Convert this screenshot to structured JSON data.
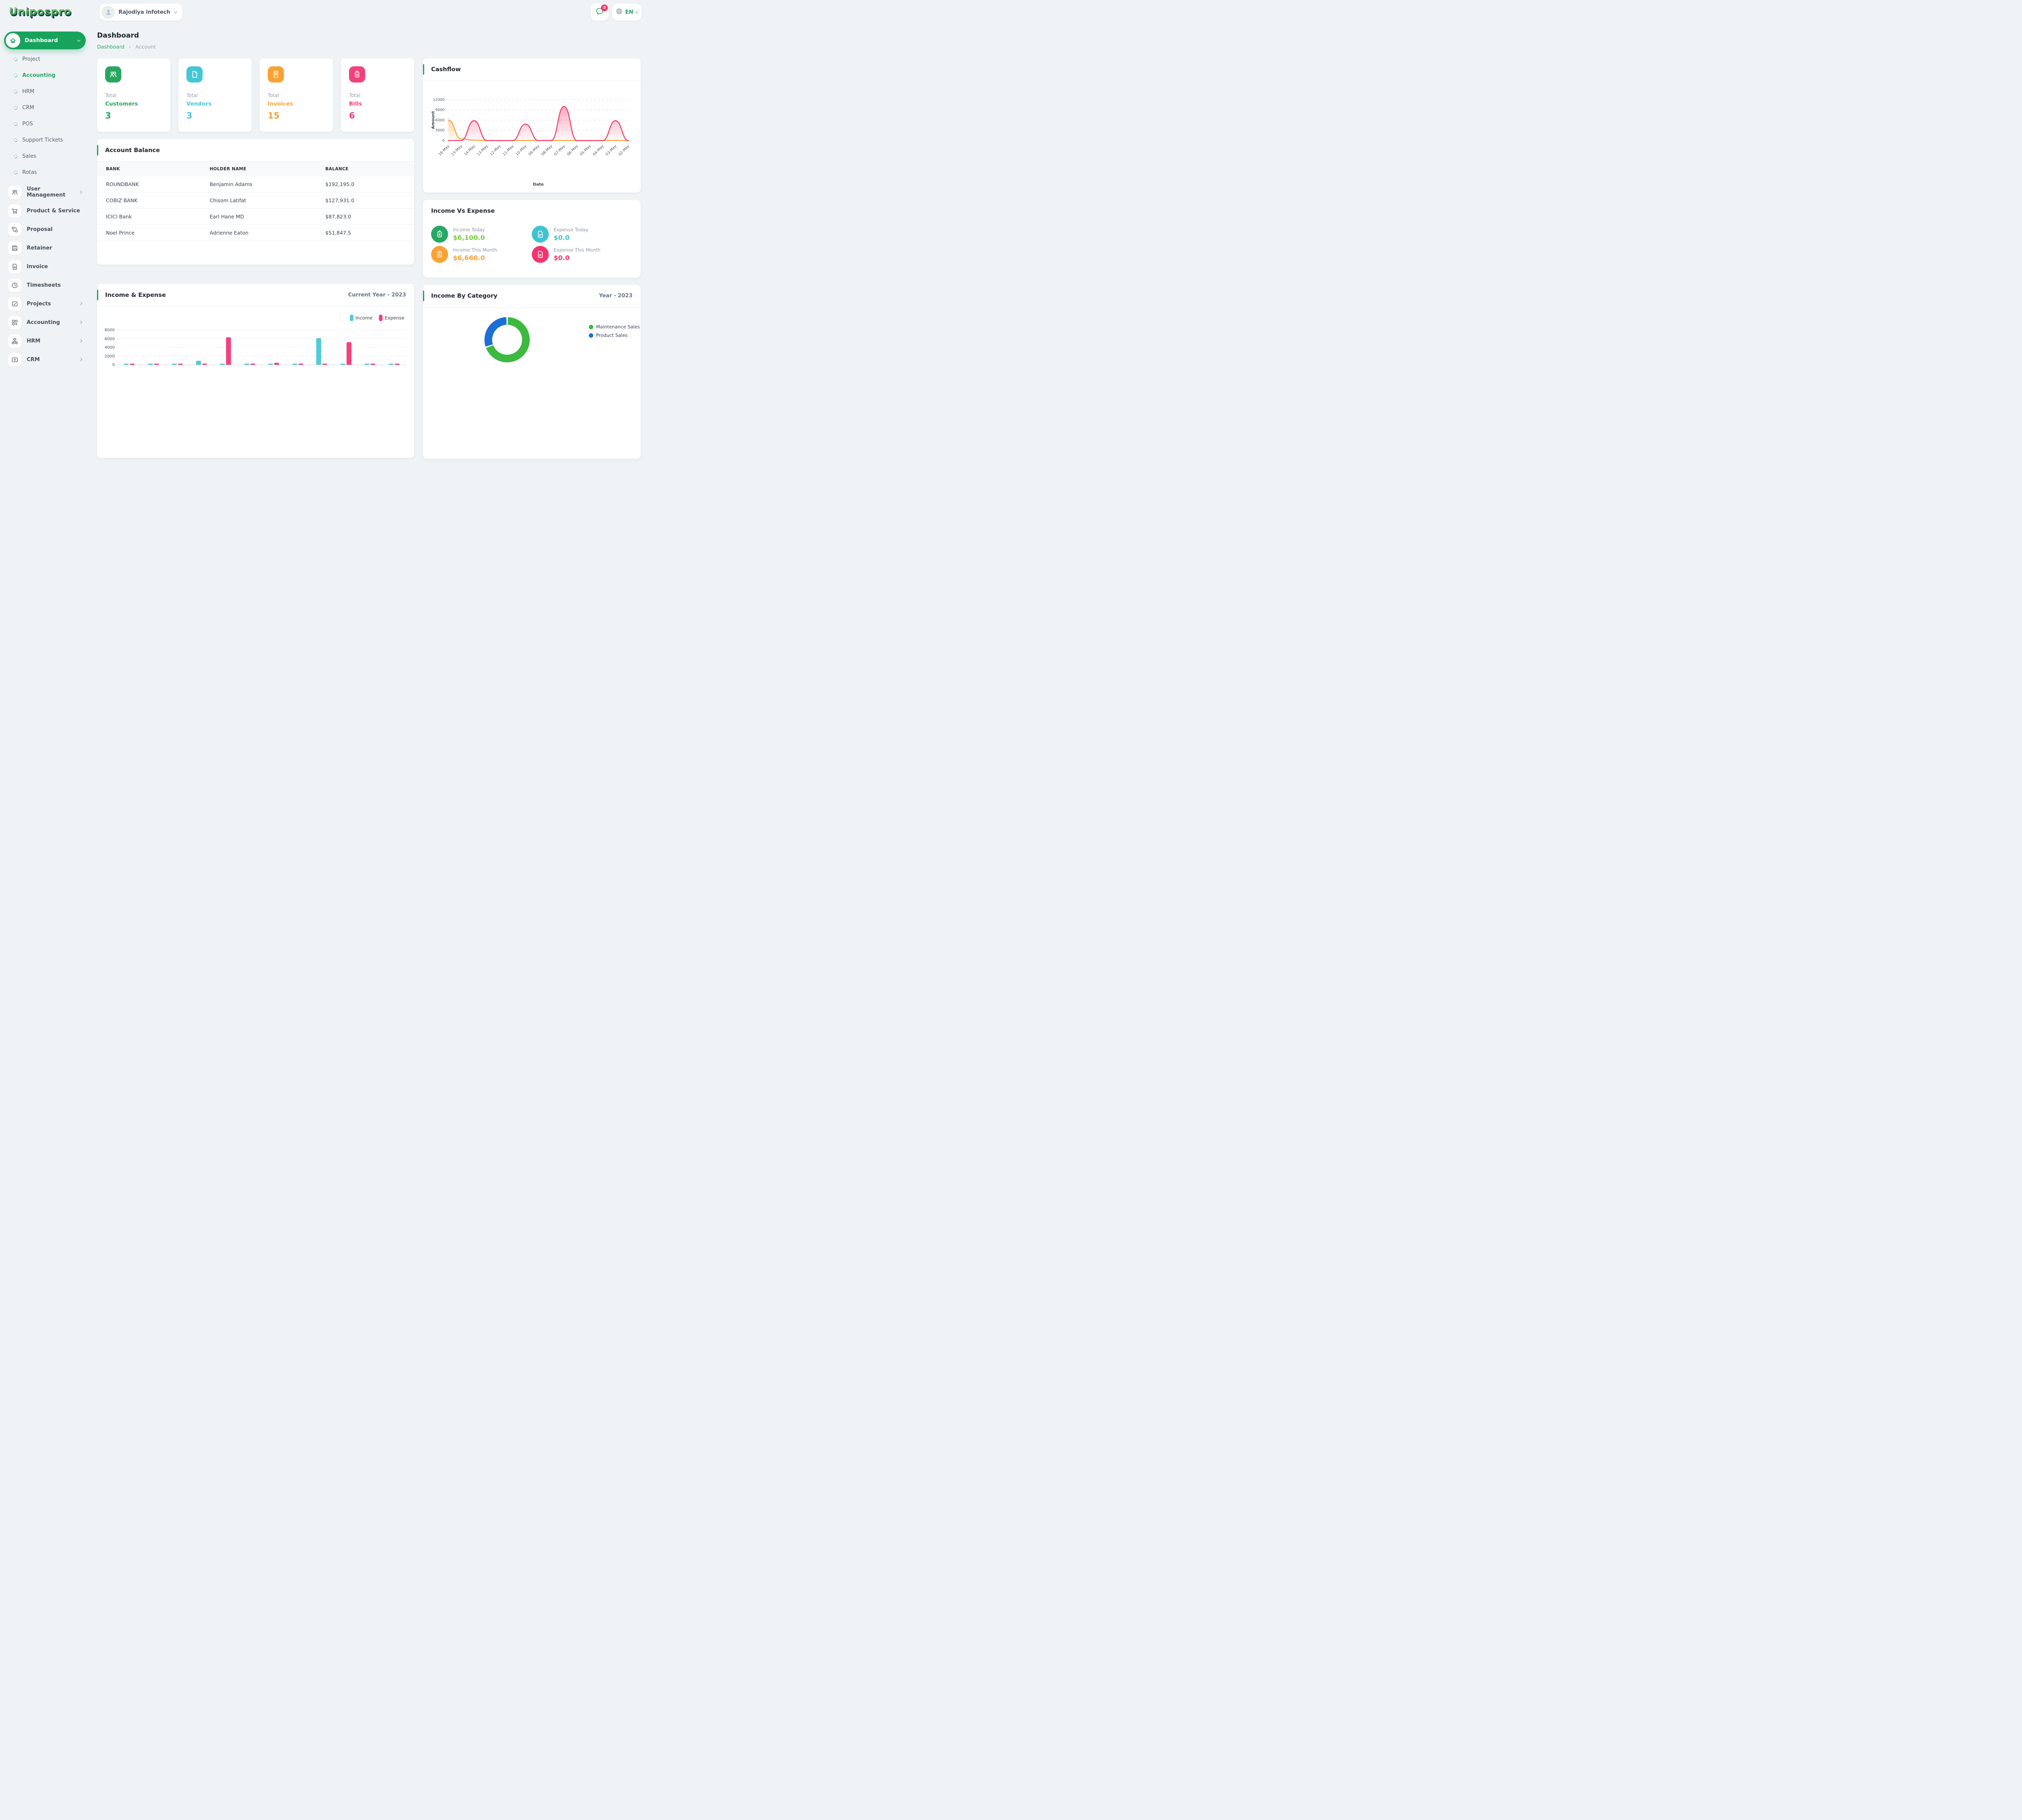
{
  "brand": {
    "name": "Unipospro"
  },
  "topbar": {
    "user": {
      "name": "Rajodiya infotech"
    },
    "chat_badge": "0",
    "language": {
      "code": "EN"
    }
  },
  "page": {
    "title": "Dashboard",
    "breadcrumb": {
      "root": "Dashboard",
      "separator": "›",
      "current": "Account"
    }
  },
  "sidebar": {
    "dashboard_label": "Dashboard",
    "sub_items": [
      {
        "label": "Project",
        "active": false
      },
      {
        "label": "Accounting",
        "active": true
      },
      {
        "label": "HRM",
        "active": false
      },
      {
        "label": "CRM",
        "active": false
      },
      {
        "label": "POS",
        "active": false
      },
      {
        "label": "Support Tickets",
        "active": false
      },
      {
        "label": "Sales",
        "active": false
      },
      {
        "label": "Rotas",
        "active": false
      }
    ],
    "main_items": [
      {
        "label": "User Management",
        "icon": "users",
        "chevron": true
      },
      {
        "label": "Product & Service",
        "icon": "cart",
        "chevron": false
      },
      {
        "label": "Proposal",
        "icon": "workflow",
        "chevron": false
      },
      {
        "label": "Retainer",
        "icon": "save",
        "chevron": false
      },
      {
        "label": "Invoice",
        "icon": "file-text",
        "chevron": false
      },
      {
        "label": "Timesheets",
        "icon": "clock",
        "chevron": false
      },
      {
        "label": "Projects",
        "icon": "check-square",
        "chevron": true
      },
      {
        "label": "Accounting",
        "icon": "grid-plus",
        "chevron": true
      },
      {
        "label": "HRM",
        "icon": "org",
        "chevron": true
      },
      {
        "label": "CRM",
        "icon": "card-plus",
        "chevron": true
      }
    ]
  },
  "stats": [
    {
      "prefix": "Total",
      "label": "Customers",
      "value": "3",
      "color": "#29a761",
      "icon": "users"
    },
    {
      "prefix": "Total",
      "label": "Vendors",
      "value": "3",
      "color": "#45c6d6",
      "icon": "page"
    },
    {
      "prefix": "Total",
      "label": "Invoices",
      "value": "15",
      "color": "#f9a234",
      "icon": "invoice"
    },
    {
      "prefix": "Total",
      "label": "Bills",
      "value": "6",
      "color": "#f2417b",
      "icon": "tag"
    }
  ],
  "account_balance": {
    "title": "Account Balance",
    "columns": [
      "BANK",
      "HOLDER NAME",
      "BALANCE"
    ],
    "rows": [
      [
        "ROUNDBANK",
        "Benjamin Adams",
        "$192,195.0"
      ],
      [
        "COBIZ BANK",
        "Chisom Latifat",
        "$127,931.0"
      ],
      [
        "ICICI Bank",
        "Earl Hane MD",
        "$87,823.0"
      ],
      [
        "Noel Prince",
        "Adrienne Eaton",
        "$51,847.5"
      ]
    ]
  },
  "income_vs_expense": {
    "title": "Income Vs Expense",
    "items": [
      {
        "label": "Income Today",
        "value": "$6,100.0",
        "icon": "tag",
        "icon_color": "#27a863",
        "value_color": "#7cc843"
      },
      {
        "label": "Expense Today",
        "value": "$0.0",
        "icon": "file",
        "icon_color": "#3fc3d3",
        "value_color": "#3fc3d3"
      },
      {
        "label": "Income This Month",
        "value": "$6,660.0",
        "icon": "tag",
        "icon_color": "#f9a337",
        "value_color": "#f9a337"
      },
      {
        "label": "Expense This Month",
        "value": "$0.0",
        "icon": "file",
        "icon_color": "#f2356e",
        "value_color": "#f2356e"
      }
    ]
  },
  "chart_data": [
    {
      "id": "cashflow",
      "type": "area",
      "title": "Cashflow",
      "xlabel": "Date",
      "ylabel": "Amount",
      "ylim": [
        0,
        12000
      ],
      "yticks": [
        0,
        3000,
        6000,
        9000,
        12000
      ],
      "grid": "dashed-horizontal",
      "legend": "none",
      "x": [
        "16-May",
        "15-May",
        "14-May",
        "13-May",
        "12-May",
        "11-May",
        "10-May",
        "09-May",
        "08-May",
        "07-May",
        "06-May",
        "05-May",
        "04-May",
        "03-May",
        "02-May"
      ],
      "series": [
        {
          "name": "orange",
          "color": "#f8a43c",
          "values": [
            6000,
            500,
            100,
            0,
            0,
            0,
            0,
            0,
            0,
            0,
            0,
            0,
            0,
            0,
            0
          ]
        },
        {
          "name": "pink",
          "color": "#f43f6d",
          "values": [
            0,
            0,
            5800,
            0,
            0,
            0,
            4800,
            0,
            0,
            10000,
            0,
            0,
            0,
            5800,
            0
          ]
        }
      ]
    },
    {
      "id": "income_expense",
      "type": "bar",
      "title": "Income & Expense",
      "subtitle": "Current Year - 2023",
      "ylim": [
        0,
        8000
      ],
      "yticks": [
        0,
        2000,
        4000,
        6000,
        8000
      ],
      "legend_position": "top-right",
      "categories": [
        "",
        "",
        "",
        "",
        "",
        "",
        "",
        "",
        "",
        "",
        "",
        ""
      ],
      "series": [
        {
          "name": "Income",
          "color": "#4fccd9",
          "values": [
            250,
            120,
            120,
            900,
            120,
            120,
            250,
            120,
            6100,
            120,
            120,
            120
          ]
        },
        {
          "name": "Expense",
          "color": "#f4417b",
          "values": [
            120,
            120,
            120,
            120,
            6300,
            120,
            450,
            120,
            120,
            5200,
            120,
            120
          ]
        }
      ]
    },
    {
      "id": "income_by_category",
      "type": "pie",
      "title": "Income By Category",
      "subtitle": "Year - 2023",
      "donut": true,
      "legend_position": "right",
      "slices": [
        {
          "label": "Maintenance Sales",
          "color": "#3db93f",
          "percent": 69.5
        },
        {
          "label": "Product Sales",
          "color": "#1c70d5",
          "percent": 30.5
        }
      ]
    }
  ]
}
